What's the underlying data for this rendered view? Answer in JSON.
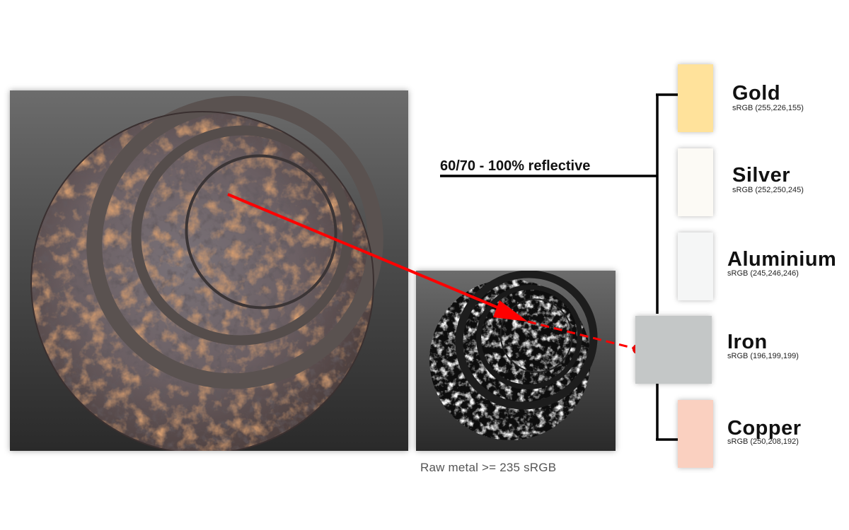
{
  "caption": "Raw metal >= 235 sRGB",
  "reflectivity_label": "60/70 - 100% reflective",
  "metals": [
    {
      "name": "Gold",
      "srgb": "sRGB (255,226,155)",
      "color": "#ffe29b"
    },
    {
      "name": "Silver",
      "srgb": "sRGB (252,250,245)",
      "color": "#fcfaf5"
    },
    {
      "name": "Aluminium",
      "srgb": "sRGB (245,246,246)",
      "color": "#f5f6f6"
    },
    {
      "name": "Iron",
      "srgb": "sRGB (196,199,199)",
      "color": "#c4c7c7"
    },
    {
      "name": "Copper",
      "srgb": "sRGB (250,208,192)",
      "color": "#fad0c0"
    }
  ],
  "colors": {
    "arrow": "#ff0000",
    "line": "#000000",
    "panel_top": "#6c6c6c",
    "panel_bottom": "#2a2a2a",
    "rust": "#a4592c",
    "metal_gray": "#6f6a6e"
  }
}
